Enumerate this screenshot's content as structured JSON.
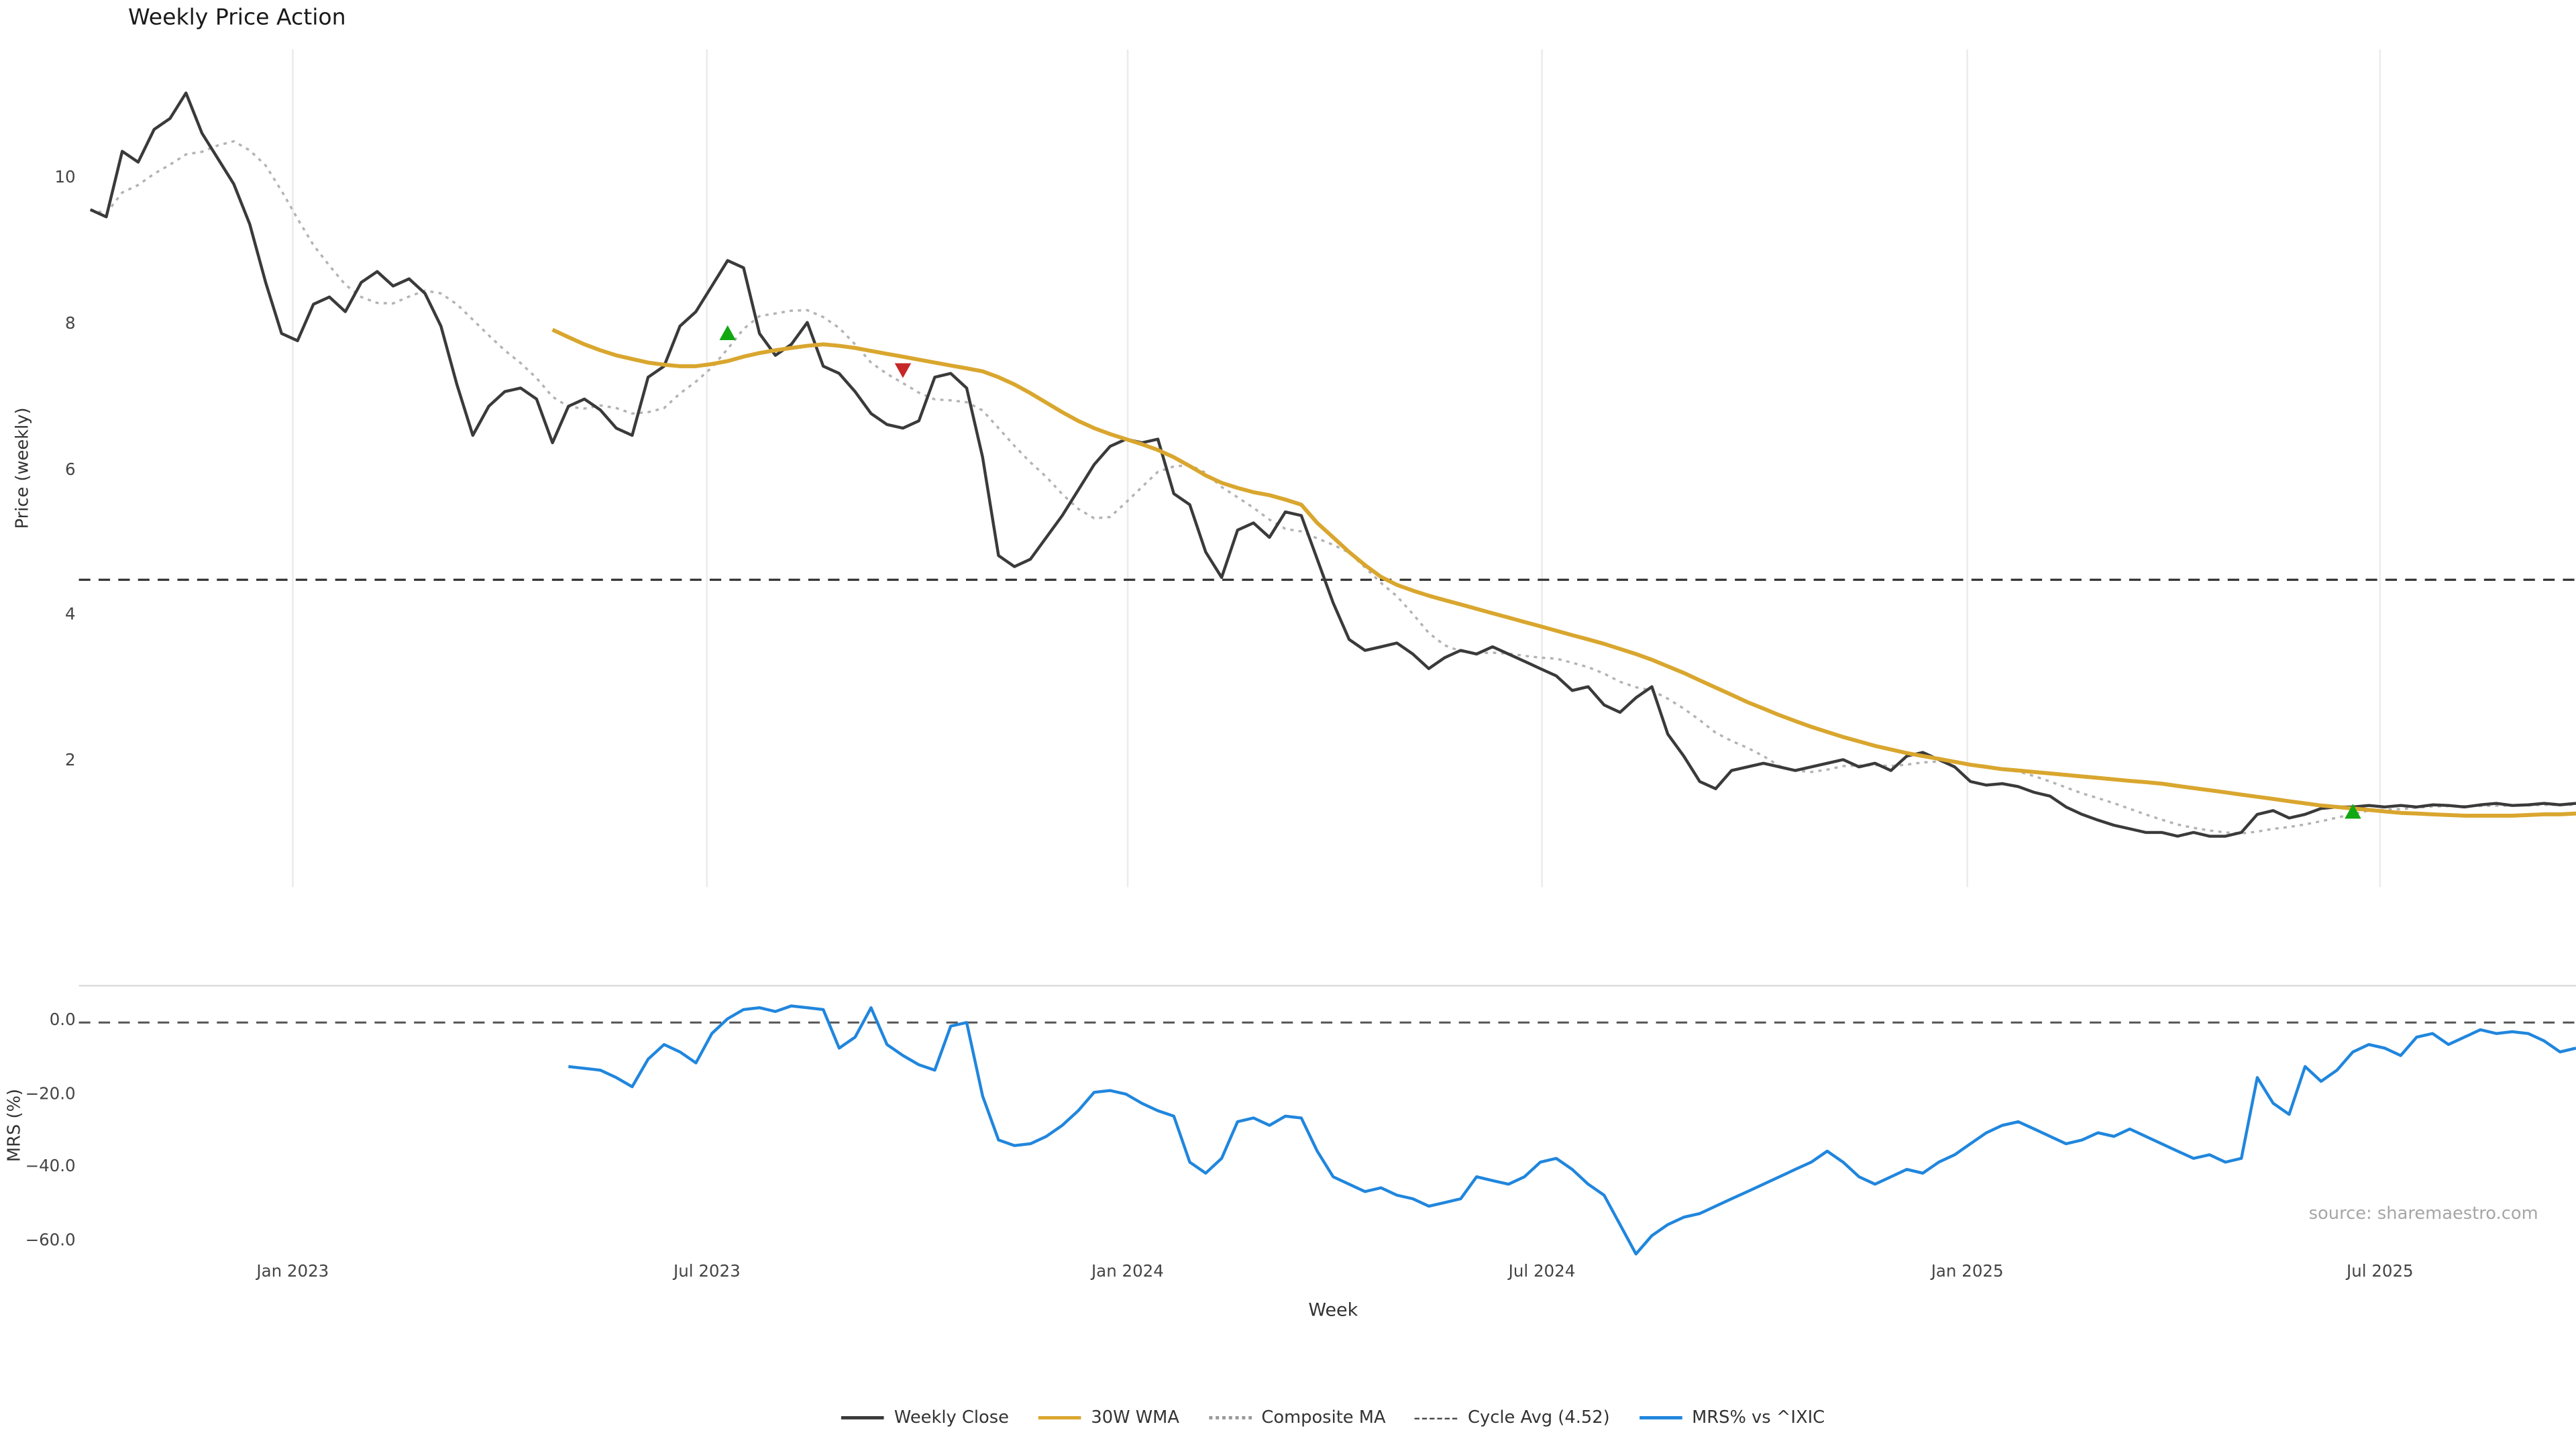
{
  "title": "Weekly Price Action",
  "xlabel": "Week",
  "source": "source: sharemaestro.com",
  "legend": {
    "items": [
      {
        "label": "Weekly Close",
        "style": "solid",
        "color": "#3a3a3a",
        "width": 2
      },
      {
        "label": "30W WMA",
        "style": "solid",
        "color": "#d9a62e",
        "width": 2.5
      },
      {
        "label": "Composite MA",
        "style": "dotted",
        "color": "#999999",
        "width": 2
      },
      {
        "label": "Cycle Avg (4.52)",
        "style": "dashed",
        "color": "#444444",
        "width": 1.5
      },
      {
        "label": "MRS% vs ^IXIC",
        "style": "solid",
        "color": "#2086dd",
        "width": 2
      }
    ]
  },
  "chart_data": [
    {
      "type": "line",
      "title": "Weekly Price Action",
      "ylabel": "Price (weekly)",
      "xlabel": "Week",
      "x_unit": "week_index",
      "ylim": [
        0.3,
        11.8
      ],
      "grid": "vertical",
      "x_ticks": [
        {
          "week": 12.7,
          "label": "Jan 2023"
        },
        {
          "week": 38.7,
          "label": "Jul 2023"
        },
        {
          "week": 65.1,
          "label": "Jan 2024"
        },
        {
          "week": 91.1,
          "label": "Jul 2024"
        },
        {
          "week": 117.8,
          "label": "Jan 2025"
        },
        {
          "week": 143.7,
          "label": "Jul 2025"
        }
      ],
      "y_ticks": [
        {
          "v": 10,
          "label": "10"
        },
        {
          "v": 8,
          "label": "8"
        },
        {
          "v": 6,
          "label": "6"
        },
        {
          "v": 4,
          "label": "4"
        },
        {
          "v": 2,
          "label": "2"
        }
      ],
      "series": [
        {
          "name": "Weekly Close",
          "color": "#3a3a3a",
          "line_style": "solid",
          "start_week": 0,
          "values": [
            9.6,
            9.5,
            10.4,
            10.25,
            10.7,
            10.85,
            11.2,
            10.65,
            10.3,
            9.95,
            9.4,
            8.6,
            7.9,
            7.8,
            8.3,
            8.4,
            8.2,
            8.6,
            8.75,
            8.55,
            8.65,
            8.45,
            8.0,
            7.2,
            6.5,
            6.9,
            7.1,
            7.15,
            7.0,
            6.4,
            6.9,
            7.0,
            6.85,
            6.6,
            6.5,
            7.3,
            7.45,
            8.0,
            8.2,
            8.55,
            8.9,
            8.8,
            7.9,
            7.6,
            7.75,
            8.05,
            7.45,
            7.35,
            7.1,
            6.8,
            6.65,
            6.6,
            6.7,
            7.3,
            7.35,
            7.15,
            6.2,
            4.85,
            4.7,
            4.8,
            5.1,
            5.4,
            5.75,
            6.1,
            6.35,
            6.45,
            6.4,
            6.45,
            5.7,
            5.55,
            4.9,
            4.55,
            5.2,
            5.3,
            5.1,
            5.45,
            5.4,
            4.8,
            4.2,
            3.7,
            3.55,
            3.6,
            3.65,
            3.5,
            3.3,
            3.45,
            3.55,
            3.5,
            3.6,
            3.5,
            3.4,
            3.3,
            3.2,
            3.0,
            3.05,
            2.8,
            2.7,
            2.9,
            3.05,
            2.4,
            2.1,
            1.75,
            1.65,
            1.9,
            1.95,
            2.0,
            1.95,
            1.9,
            1.95,
            2.0,
            2.05,
            1.95,
            2.0,
            1.9,
            2.1,
            2.15,
            2.05,
            1.95,
            1.75,
            1.7,
            1.72,
            1.68,
            1.6,
            1.55,
            1.4,
            1.3,
            1.22,
            1.15,
            1.1,
            1.05,
            1.05,
            1.0,
            1.05,
            1.0,
            1.0,
            1.05,
            1.3,
            1.35,
            1.25,
            1.3,
            1.38,
            1.4,
            1.4,
            1.42,
            1.4,
            1.42,
            1.4,
            1.43,
            1.42,
            1.4,
            1.43,
            1.45,
            1.42,
            1.43,
            1.45,
            1.43,
            1.45
          ]
        },
        {
          "name": "30W WMA",
          "color": "#d9a62e",
          "line_style": "solid",
          "start_week": 29,
          "values": [
            7.95,
            7.85,
            7.75,
            7.67,
            7.6,
            7.55,
            7.5,
            7.47,
            7.45,
            7.45,
            7.48,
            7.52,
            7.58,
            7.63,
            7.67,
            7.7,
            7.73,
            7.75,
            7.73,
            7.7,
            7.66,
            7.62,
            7.58,
            7.54,
            7.5,
            7.46,
            7.42,
            7.38,
            7.3,
            7.2,
            7.08,
            6.95,
            6.82,
            6.7,
            6.6,
            6.52,
            6.45,
            6.38,
            6.3,
            6.2,
            6.08,
            5.95,
            5.85,
            5.78,
            5.72,
            5.68,
            5.62,
            5.55,
            5.3,
            5.1,
            4.9,
            4.72,
            4.56,
            4.45,
            4.37,
            4.3,
            4.24,
            4.18,
            4.12,
            4.06,
            4.0,
            3.94,
            3.88,
            3.82,
            3.76,
            3.7,
            3.64,
            3.57,
            3.5,
            3.42,
            3.33,
            3.24,
            3.14,
            3.04,
            2.94,
            2.84,
            2.75,
            2.66,
            2.58,
            2.5,
            2.43,
            2.36,
            2.3,
            2.24,
            2.19,
            2.14,
            2.1,
            2.06,
            2.02,
            1.98,
            1.95,
            1.92,
            1.9,
            1.88,
            1.86,
            1.84,
            1.82,
            1.8,
            1.78,
            1.76,
            1.74,
            1.72,
            1.69,
            1.66,
            1.63,
            1.6,
            1.57,
            1.54,
            1.51,
            1.48,
            1.45,
            1.42,
            1.4,
            1.38,
            1.36,
            1.34,
            1.32,
            1.31,
            1.3,
            1.29,
            1.28,
            1.28,
            1.28,
            1.28,
            1.29,
            1.3,
            1.3,
            1.31
          ]
        },
        {
          "name": "Composite MA",
          "color": "#b3b3b3",
          "line_style": "dotted",
          "derived": {
            "from": "Weekly Close",
            "method": "trailing_mean",
            "window_weeks": 8
          }
        },
        {
          "name": "Cycle Avg",
          "color": "#333333",
          "line_style": "dashed",
          "constant": 4.52
        }
      ],
      "signals": [
        {
          "week": 40,
          "price": 7.9,
          "type": "buy",
          "color": "#12a812"
        },
        {
          "week": 51,
          "price": 7.4,
          "type": "sell",
          "color": "#c62828"
        },
        {
          "week": 142,
          "price": 1.33,
          "type": "buy",
          "color": "#12a812"
        }
      ]
    },
    {
      "type": "line",
      "ylabel": "MRS (%)",
      "ylim": [
        -66,
        10
      ],
      "y_ticks": [
        {
          "v": 0,
          "label": "0.0"
        },
        {
          "v": -20,
          "label": "−20.0"
        },
        {
          "v": -40,
          "label": "−40.0"
        },
        {
          "v": -60,
          "label": "−60.0"
        }
      ],
      "zero_line": "dashed",
      "series": [
        {
          "name": "MRS% vs ^IXIC",
          "color": "#2086dd",
          "line_style": "solid",
          "start_week": 30,
          "values": [
            -12,
            -12.5,
            -13,
            -15,
            -17.5,
            -10,
            -6,
            -8,
            -11,
            -3,
            1,
            3.5,
            4,
            3,
            4.5,
            4,
            3.5,
            -7,
            -4,
            4,
            -6,
            -9,
            -11.5,
            -13,
            -1,
            0,
            -20,
            -32,
            -33.5,
            -33,
            -31,
            -28,
            -24,
            -19,
            -18.5,
            -19.5,
            -22,
            -24,
            -25.5,
            -38,
            -41,
            -37,
            -27,
            -26,
            -28,
            -25.5,
            -26,
            -35,
            -42,
            -44,
            -46,
            -45,
            -47,
            -48,
            -50,
            -49,
            -48,
            -42,
            -43,
            -44,
            -42,
            -38,
            -37,
            -40,
            -44,
            -47,
            -55,
            -63,
            -58,
            -55,
            -53,
            -52,
            -50,
            -48,
            -46,
            -44,
            -42,
            -40,
            -38,
            -35,
            -38,
            -42,
            -44,
            -42,
            -40,
            -41,
            -38,
            -36,
            -33,
            -30,
            -28,
            -27,
            -29,
            -31,
            -33,
            -32,
            -30,
            -31,
            -29,
            -31,
            -33,
            -35,
            -37,
            -36,
            -38,
            -37,
            -15,
            -22,
            -25,
            -12,
            -16,
            -13,
            -8,
            -6,
            -7,
            -9,
            -4,
            -3,
            -6,
            -4,
            -2,
            -3,
            -2.5,
            -3,
            -5,
            -8,
            -7
          ]
        }
      ]
    }
  ]
}
